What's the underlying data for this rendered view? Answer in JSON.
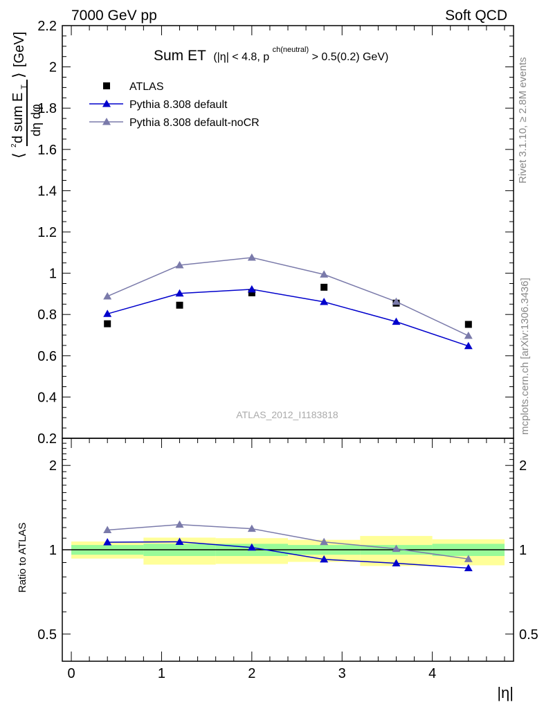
{
  "header": {
    "energy_label": "7000 GeV pp",
    "process_label": "Soft QCD"
  },
  "side_labels": {
    "rivet": "Rivet 3.1.10, ≥ 2.8M events",
    "mcplots": "mcplots.cern.ch [arXiv:1306.3436]"
  },
  "chart_data": [
    {
      "type": "scatter",
      "panel": "main",
      "title_main": "Sum ET",
      "title_cut": "(|η| < 4.8, p",
      "title_sup": "ch(neutral)",
      "title_tail": " > 0.5(0.2) GeV)",
      "ylabel": "⟨ d²sum E_T / dη dφ ⟩ [GeV]",
      "ylim": [
        0.2,
        2.2
      ],
      "y_ticks": [
        "0.2",
        "0.4",
        "0.6",
        "0.8",
        "1",
        "1.2",
        "1.4",
        "1.6",
        "1.8",
        "2",
        "2.2"
      ],
      "xlim": [
        -0.1,
        4.9
      ],
      "watermark": "ATLAS_2012_I1183818",
      "legend_position": "top-left",
      "series": [
        {
          "name": "ATLAS",
          "marker": "square",
          "color": "#000000",
          "x": [
            0.4,
            1.2,
            2.0,
            2.8,
            3.6,
            4.4
          ],
          "y": [
            0.755,
            0.845,
            0.905,
            0.932,
            0.855,
            0.752
          ]
        },
        {
          "name": "Pythia 8.308 default",
          "marker": "triangle",
          "color": "#0000cc",
          "x": [
            0.4,
            1.2,
            2.0,
            2.8,
            3.6,
            4.4
          ],
          "y": [
            0.803,
            0.902,
            0.922,
            0.861,
            0.765,
            0.647
          ]
        },
        {
          "name": "Pythia 8.308 default-noCR",
          "marker": "triangle",
          "color": "#7a7aaa",
          "x": [
            0.4,
            1.2,
            2.0,
            2.8,
            3.6,
            4.4
          ],
          "y": [
            0.888,
            1.039,
            1.076,
            0.994,
            0.862,
            0.697
          ]
        }
      ]
    },
    {
      "type": "line",
      "panel": "ratio",
      "ylabel": "Ratio to ATLAS",
      "y_scale": "log",
      "ylim": [
        0.4,
        2.5
      ],
      "y_ticks": [
        "0.5",
        "1",
        "2"
      ],
      "x_ticks": [
        "0",
        "1",
        "2",
        "3",
        "4"
      ],
      "xlabel": "|η|",
      "xlim": [
        -0.1,
        4.9
      ],
      "bands": [
        {
          "x": [
            0.0,
            0.8
          ],
          "inner": [
            0.96,
            1.04
          ],
          "outer": [
            0.93,
            1.07
          ]
        },
        {
          "x": [
            0.8,
            1.6
          ],
          "inner": [
            0.95,
            1.05
          ],
          "outer": [
            0.885,
            1.105
          ]
        },
        {
          "x": [
            1.6,
            2.4
          ],
          "inner": [
            0.95,
            1.05
          ],
          "outer": [
            0.89,
            1.1
          ]
        },
        {
          "x": [
            2.4,
            3.2
          ],
          "inner": [
            0.96,
            1.04
          ],
          "outer": [
            0.905,
            1.085
          ]
        },
        {
          "x": [
            3.2,
            4.0
          ],
          "inner": [
            0.96,
            1.04
          ],
          "outer": [
            0.875,
            1.12
          ]
        },
        {
          "x": [
            4.0,
            4.8
          ],
          "inner": [
            0.95,
            1.05
          ],
          "outer": [
            0.88,
            1.09
          ]
        }
      ],
      "band_colors": {
        "inner": "#98fb98",
        "outer": "#ffff99"
      },
      "series": [
        {
          "name": "Pythia 8.308 default",
          "color": "#0000cc",
          "x": [
            0.4,
            1.2,
            2.0,
            2.8,
            3.6,
            4.4
          ],
          "y": [
            1.064,
            1.068,
            1.019,
            0.924,
            0.895,
            0.86
          ]
        },
        {
          "name": "Pythia 8.308 default-noCR",
          "color": "#7a7aaa",
          "x": [
            0.4,
            1.2,
            2.0,
            2.8,
            3.6,
            4.4
          ],
          "y": [
            1.176,
            1.23,
            1.189,
            1.066,
            1.008,
            0.927
          ]
        }
      ]
    }
  ]
}
